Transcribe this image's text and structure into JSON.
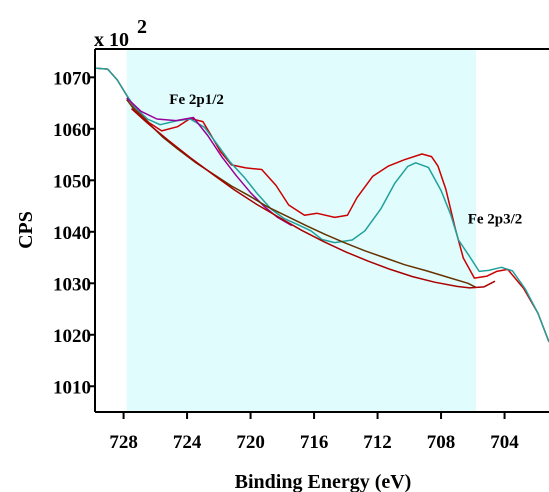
{
  "chart_data": {
    "type": "line",
    "xlabel": "Binding Energy (eV)",
    "ylabel": "CPS",
    "y_multiplier": {
      "base": "x 10",
      "exponent": "2"
    },
    "x_reversed": true,
    "xlim": [
      701.2,
      729.8
    ],
    "ylim": [
      1005.0,
      1075.5
    ],
    "x_ticks": [
      728,
      724,
      720,
      716,
      712,
      708,
      704
    ],
    "y_ticks": [
      1010,
      1020,
      1030,
      1040,
      1050,
      1060,
      1070
    ],
    "highlight_region": {
      "x": [
        705.8,
        727.8
      ],
      "color": "#e0fcfd"
    },
    "annotations": [
      {
        "text": "Fe 2p1/2",
        "x": 723.4,
        "y": 1064.8
      },
      {
        "text": "Fe 2p3/2",
        "x": 704.6,
        "y": 1041.6
      }
    ],
    "series": [
      {
        "color": "#cc0000",
        "points": [
          [
            729.8,
            1071.8
          ],
          [
            729.0,
            1071.6
          ],
          [
            728.4,
            1069.5
          ],
          [
            727.8,
            1066.5
          ],
          [
            727.3,
            1064.0
          ],
          [
            726.4,
            1061.2
          ],
          [
            725.6,
            1059.6
          ],
          [
            724.6,
            1060.4
          ],
          [
            723.8,
            1062.0
          ],
          [
            723.0,
            1061.4
          ],
          [
            722.5,
            1058.8
          ],
          [
            721.9,
            1055.6
          ],
          [
            721.2,
            1053.0
          ],
          [
            720.3,
            1052.4
          ],
          [
            719.3,
            1052.1
          ],
          [
            718.4,
            1049.0
          ],
          [
            717.6,
            1045.2
          ],
          [
            716.6,
            1043.2
          ],
          [
            715.8,
            1043.6
          ],
          [
            714.7,
            1042.8
          ],
          [
            713.9,
            1043.2
          ],
          [
            713.3,
            1046.6
          ],
          [
            712.3,
            1050.8
          ],
          [
            711.3,
            1052.8
          ],
          [
            710.3,
            1054.0
          ],
          [
            709.2,
            1055.1
          ],
          [
            708.6,
            1054.6
          ],
          [
            708.2,
            1052.8
          ],
          [
            707.7,
            1048.3
          ],
          [
            707.1,
            1040.6
          ],
          [
            706.6,
            1034.9
          ],
          [
            705.9,
            1031.0
          ],
          [
            705.1,
            1031.4
          ],
          [
            704.5,
            1032.3
          ],
          [
            703.8,
            1032.7
          ],
          [
            702.8,
            1029.0
          ],
          [
            701.9,
            1024.2
          ],
          [
            701.2,
            1018.6
          ]
        ]
      },
      {
        "color": "#22a09a",
        "points": [
          [
            729.8,
            1071.8
          ],
          [
            729.0,
            1071.6
          ],
          [
            728.4,
            1069.5
          ],
          [
            727.8,
            1066.5
          ],
          [
            727.3,
            1064.2
          ],
          [
            726.5,
            1061.9
          ],
          [
            725.7,
            1060.8
          ],
          [
            724.6,
            1061.6
          ],
          [
            723.8,
            1061.9
          ],
          [
            722.9,
            1060.3
          ],
          [
            722.1,
            1057.0
          ],
          [
            721.3,
            1053.6
          ],
          [
            720.4,
            1050.6
          ],
          [
            719.6,
            1047.5
          ],
          [
            718.7,
            1044.4
          ],
          [
            717.9,
            1042.6
          ],
          [
            717.1,
            1041.5
          ],
          [
            716.2,
            1040.2
          ],
          [
            715.5,
            1038.5
          ],
          [
            714.7,
            1037.9
          ],
          [
            713.6,
            1038.4
          ],
          [
            712.8,
            1040.2
          ],
          [
            711.8,
            1044.4
          ],
          [
            710.9,
            1049.5
          ],
          [
            710.1,
            1052.7
          ],
          [
            709.6,
            1053.4
          ],
          [
            708.8,
            1052.5
          ],
          [
            708.0,
            1048.0
          ],
          [
            707.4,
            1043.4
          ],
          [
            706.9,
            1038.4
          ],
          [
            706.2,
            1035.2
          ],
          [
            705.6,
            1032.3
          ],
          [
            705.0,
            1032.5
          ],
          [
            704.2,
            1033.1
          ],
          [
            703.5,
            1032.4
          ],
          [
            702.7,
            1028.9
          ],
          [
            701.9,
            1024.2
          ],
          [
            701.2,
            1018.6
          ]
        ]
      },
      {
        "color": "#990099",
        "points": [
          [
            727.8,
            1066.0
          ],
          [
            726.9,
            1063.4
          ],
          [
            725.9,
            1061.9
          ],
          [
            724.7,
            1061.6
          ],
          [
            723.6,
            1062.2
          ],
          [
            722.7,
            1058.7
          ],
          [
            721.8,
            1054.5
          ],
          [
            720.9,
            1050.9
          ],
          [
            720.0,
            1047.6
          ],
          [
            719.1,
            1044.8
          ],
          [
            718.3,
            1042.8
          ],
          [
            717.4,
            1041.2
          ]
        ]
      },
      {
        "color": "#663300",
        "points": [
          [
            727.8,
            1065.7
          ],
          [
            727.3,
            1063.6
          ],
          [
            726.5,
            1061.3
          ],
          [
            725.5,
            1058.3
          ],
          [
            724.6,
            1056.1
          ],
          [
            723.4,
            1053.3
          ],
          [
            722.3,
            1051.1
          ],
          [
            721.2,
            1048.9
          ],
          [
            720.1,
            1047.0
          ],
          [
            718.9,
            1044.8
          ],
          [
            717.7,
            1043.0
          ],
          [
            716.5,
            1041.2
          ],
          [
            715.3,
            1039.5
          ],
          [
            714.1,
            1037.9
          ],
          [
            712.8,
            1036.3
          ],
          [
            711.5,
            1034.9
          ],
          [
            710.3,
            1033.6
          ],
          [
            708.9,
            1032.4
          ],
          [
            707.6,
            1031.2
          ],
          [
            706.3,
            1030.0
          ],
          [
            705.8,
            1029.2
          ]
        ]
      },
      {
        "color": "#aa0000",
        "points": [
          [
            727.5,
            1063.9
          ],
          [
            726.5,
            1061.1
          ],
          [
            725.2,
            1057.8
          ],
          [
            723.8,
            1054.4
          ],
          [
            722.4,
            1051.2
          ],
          [
            721.0,
            1048.1
          ],
          [
            719.6,
            1045.3
          ],
          [
            718.2,
            1042.8
          ],
          [
            716.8,
            1040.3
          ],
          [
            715.4,
            1038.1
          ],
          [
            714.0,
            1036.1
          ],
          [
            712.6,
            1034.3
          ],
          [
            711.2,
            1032.7
          ],
          [
            709.8,
            1031.3
          ],
          [
            708.4,
            1030.2
          ],
          [
            707.0,
            1029.4
          ],
          [
            706.2,
            1029.1
          ],
          [
            705.3,
            1029.3
          ],
          [
            704.6,
            1030.4
          ]
        ]
      }
    ]
  }
}
